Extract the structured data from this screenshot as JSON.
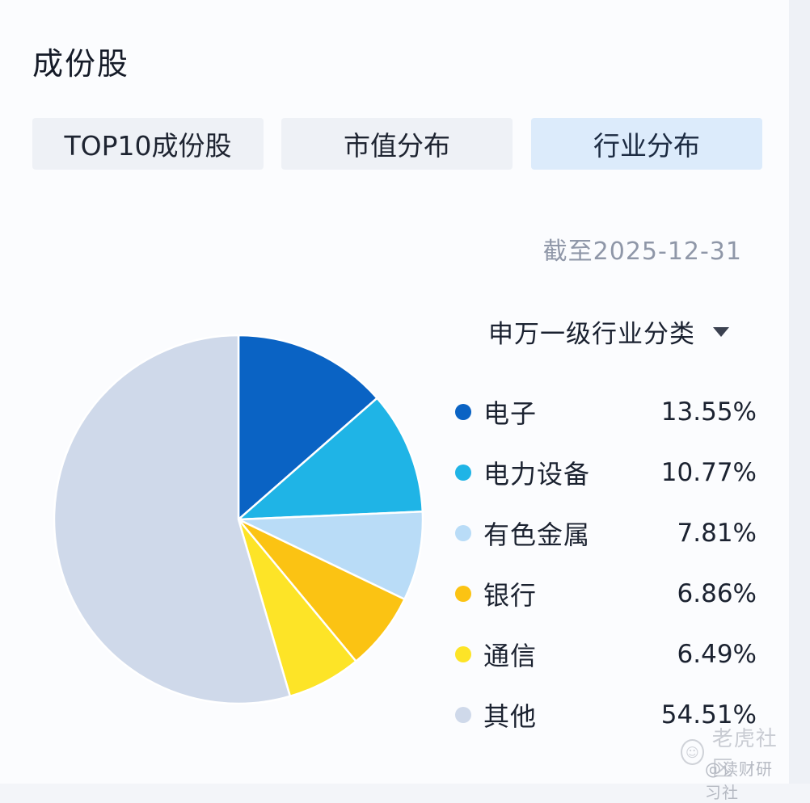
{
  "page": {
    "title": "成份股"
  },
  "tabs": [
    {
      "label": "TOP10成份股",
      "active": false
    },
    {
      "label": "市值分布",
      "active": false
    },
    {
      "label": "行业分布",
      "active": true
    }
  ],
  "as_of": "截至2025-12-31",
  "classification": {
    "label": "申万一级行业分类",
    "icon": "caret-down-icon"
  },
  "chart_data": {
    "type": "pie",
    "slices": [
      {
        "name": "电子",
        "value": 13.55,
        "label": "13.55%",
        "color": "#0a63c4"
      },
      {
        "name": "电力设备",
        "value": 10.77,
        "label": "10.77%",
        "color": "#1fb4e6"
      },
      {
        "name": "有色金属",
        "value": 7.81,
        "label": "7.81%",
        "color": "#b9dcf7"
      },
      {
        "name": "银行",
        "value": 6.86,
        "label": "6.86%",
        "color": "#fbc313"
      },
      {
        "name": "通信",
        "value": 6.49,
        "label": "6.49%",
        "color": "#fde427"
      },
      {
        "name": "其他",
        "value": 54.51,
        "label": "54.51%",
        "color": "#cfd9ea"
      }
    ],
    "start_angle": "12 o'clock",
    "direction": "clockwise",
    "legend_position": "right"
  },
  "watermark": {
    "line1": "老虎社区",
    "line2": "@读财研习社",
    "icon": "tiger-logo-icon"
  }
}
